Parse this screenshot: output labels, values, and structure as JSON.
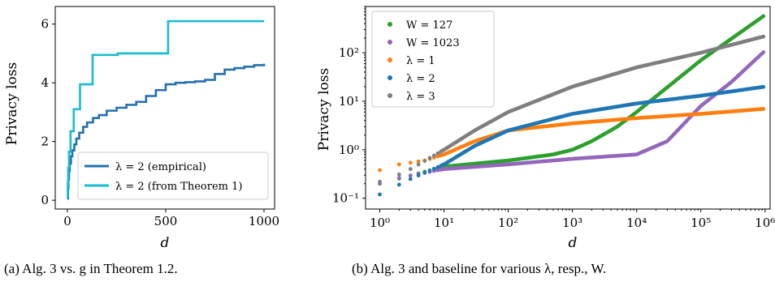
{
  "chart_data": [
    {
      "type": "line",
      "ylabel": "Privacy loss",
      "xlabel": "d",
      "xlim": [
        0,
        1000
      ],
      "ylim": [
        -0.3,
        6.6
      ],
      "xticks": [
        "0",
        "500",
        "1000"
      ],
      "yticks": [
        "0",
        "2",
        "4",
        "6"
      ],
      "legend": {
        "placement": "lower-right"
      },
      "series": [
        {
          "name": "λ = 2 (empirical)",
          "color": "#2470b0",
          "x": [
            1,
            3,
            5,
            8,
            12,
            18,
            25,
            35,
            45,
            60,
            80,
            100,
            130,
            160,
            200,
            250,
            300,
            350,
            400,
            450,
            500,
            550,
            600,
            650,
            700,
            750,
            800,
            850,
            900,
            950,
            1000
          ],
          "y": [
            0.05,
            0.4,
            0.7,
            1.0,
            1.25,
            1.5,
            1.7,
            1.9,
            2.1,
            2.3,
            2.5,
            2.65,
            2.8,
            2.9,
            3.05,
            3.15,
            3.25,
            3.35,
            3.55,
            3.75,
            3.95,
            4.0,
            4.02,
            4.05,
            4.1,
            4.3,
            4.45,
            4.5,
            4.55,
            4.6,
            4.65
          ]
        },
        {
          "name": "λ = 2 (from Theorem 1)",
          "color": "#17bdcf",
          "steps": [
            [
              0,
              0.1
            ],
            [
              2,
              0.6
            ],
            [
              4,
              1.1
            ],
            [
              8,
              1.65
            ],
            [
              16,
              2.35
            ],
            [
              32,
              3.1
            ],
            [
              64,
              3.95
            ],
            [
              128,
              4.95
            ],
            [
              256,
              5.0
            ],
            [
              512,
              6.1
            ],
            [
              1000,
              6.1
            ]
          ]
        }
      ]
    },
    {
      "type": "scatter",
      "xlabel": "d",
      "ylabel": "Privacy loss",
      "xscale": "log",
      "yscale": "log",
      "xlim": [
        0.6,
        1200000
      ],
      "ylim": [
        0.06,
        900
      ],
      "xticks": [
        "10⁰",
        "10¹",
        "10²",
        "10³",
        "10⁴",
        "10⁵",
        "10⁶"
      ],
      "yticks": [
        "10⁻¹",
        "10⁰",
        "10¹",
        "10²"
      ],
      "legend": {
        "placement": "top-left"
      },
      "series": [
        {
          "name": "W = 127",
          "color": "#2ca02c",
          "points": [
            [
              1,
              0.2
            ],
            [
              10,
              0.45
            ],
            [
              100,
              0.6
            ],
            [
              500,
              0.8
            ],
            [
              1000,
              1.0
            ],
            [
              2000,
              1.5
            ],
            [
              5000,
              3.0
            ],
            [
              10000,
              6.0
            ],
            [
              100000,
              70
            ],
            [
              1000000,
              600
            ]
          ]
        },
        {
          "name": "W = 1023",
          "color": "#9467bd",
          "points": [
            [
              1,
              0.22
            ],
            [
              10,
              0.4
            ],
            [
              100,
              0.5
            ],
            [
              1000,
              0.65
            ],
            [
              10000,
              0.8
            ],
            [
              30000,
              1.5
            ],
            [
              100000,
              8
            ],
            [
              300000,
              25
            ],
            [
              1000000,
              110
            ]
          ]
        },
        {
          "name": "λ = 1",
          "color": "#ff7f0e",
          "points": [
            [
              1,
              0.38
            ],
            [
              2,
              0.5
            ],
            [
              5,
              0.6
            ],
            [
              10,
              0.8
            ],
            [
              30,
              1.5
            ],
            [
              100,
              2.5
            ],
            [
              1000,
              3.5
            ],
            [
              10000,
              4.5
            ],
            [
              100000,
              5.5
            ],
            [
              1000000,
              7
            ]
          ]
        },
        {
          "name": "λ = 2",
          "color": "#1f77b4",
          "points": [
            [
              1,
              0.12
            ],
            [
              3,
              0.25
            ],
            [
              10,
              0.5
            ],
            [
              30,
              1.2
            ],
            [
              100,
              2.5
            ],
            [
              1000,
              5.5
            ],
            [
              10000,
              9
            ],
            [
              100000,
              13
            ],
            [
              1000000,
              20
            ]
          ]
        },
        {
          "name": "λ = 3",
          "color": "#7f7f7f",
          "points": [
            [
              1,
              0.2
            ],
            [
              3,
              0.4
            ],
            [
              10,
              1.0
            ],
            [
              30,
              2.5
            ],
            [
              100,
              6
            ],
            [
              1000,
              20
            ],
            [
              10000,
              50
            ],
            [
              100000,
              100
            ],
            [
              1000000,
              220
            ]
          ]
        }
      ]
    }
  ],
  "captions": {
    "a": "(a)  Alg. 3 vs. g in Theorem 1.2.",
    "b": "(b)  Alg. 3 and baseline for various λ, resp., W."
  }
}
